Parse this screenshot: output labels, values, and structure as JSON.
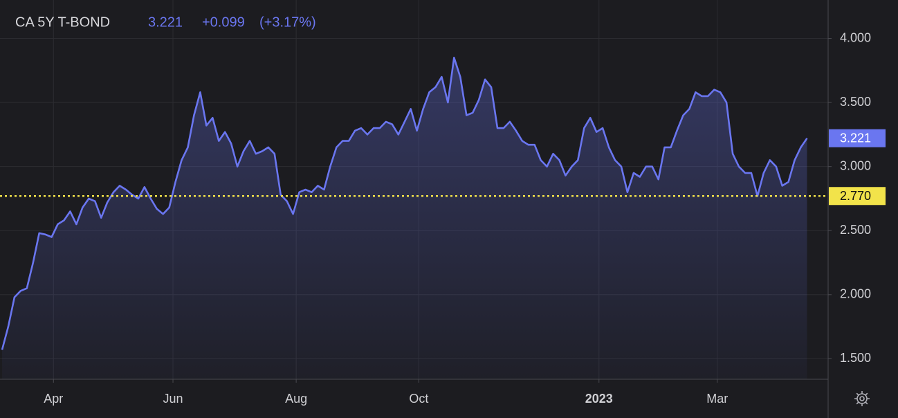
{
  "chart_data": {
    "type": "line",
    "title": "CA 5Y T-BOND",
    "last_price": 3.221,
    "change": "+0.099",
    "change_pct": "(+3.17%)",
    "color": "#6a76f0",
    "reference": {
      "value": 2.77,
      "label": "2.770",
      "color": "#f2e34a"
    },
    "values": [
      1.57,
      1.75,
      1.98,
      2.03,
      2.05,
      2.25,
      2.48,
      2.47,
      2.45,
      2.55,
      2.58,
      2.65,
      2.55,
      2.68,
      2.75,
      2.73,
      2.6,
      2.72,
      2.8,
      2.85,
      2.82,
      2.78,
      2.75,
      2.84,
      2.75,
      2.67,
      2.63,
      2.68,
      2.88,
      3.05,
      3.15,
      3.4,
      3.58,
      3.32,
      3.38,
      3.2,
      3.27,
      3.18,
      3.0,
      3.12,
      3.2,
      3.1,
      3.12,
      3.15,
      3.1,
      2.78,
      2.73,
      2.63,
      2.8,
      2.82,
      2.8,
      2.85,
      2.82,
      3.0,
      3.15,
      3.2,
      3.2,
      3.28,
      3.3,
      3.25,
      3.3,
      3.3,
      3.35,
      3.33,
      3.25,
      3.35,
      3.45,
      3.28,
      3.45,
      3.58,
      3.62,
      3.7,
      3.5,
      3.85,
      3.7,
      3.4,
      3.42,
      3.52,
      3.68,
      3.62,
      3.3,
      3.3,
      3.35,
      3.28,
      3.2,
      3.17,
      3.17,
      3.05,
      3.0,
      3.1,
      3.05,
      2.93,
      3.0,
      3.05,
      3.3,
      3.38,
      3.27,
      3.3,
      3.15,
      3.05,
      3.0,
      2.8,
      2.95,
      2.92,
      3.0,
      3.0,
      2.9,
      3.15,
      3.15,
      3.28,
      3.4,
      3.45,
      3.58,
      3.55,
      3.55,
      3.6,
      3.58,
      3.5,
      3.1,
      3.0,
      2.95,
      2.95,
      2.77,
      2.95,
      3.05,
      3.0,
      2.85,
      2.88,
      3.05,
      3.15,
      3.221
    ],
    "xlim": [
      0,
      133
    ],
    "xticks": [
      {
        "value": 8.3,
        "label": "Apr"
      },
      {
        "value": 27.6,
        "label": "Jun"
      },
      {
        "value": 47.5,
        "label": "Aug"
      },
      {
        "value": 67.3,
        "label": "Oct"
      },
      {
        "value": 96.4,
        "label": "2023"
      },
      {
        "value": 115.5,
        "label": "Mar"
      }
    ],
    "ylim": [
      1.34,
      4.3
    ],
    "yticks": [
      {
        "value": 1.5,
        "label": "1.500"
      },
      {
        "value": 2,
        "label": "2.000"
      },
      {
        "value": 2.5,
        "label": "2.500"
      },
      {
        "value": 3,
        "label": "3.000"
      },
      {
        "value": 3.5,
        "label": "3.500"
      },
      {
        "value": 4,
        "label": "4.000"
      }
    ],
    "grid": true
  }
}
